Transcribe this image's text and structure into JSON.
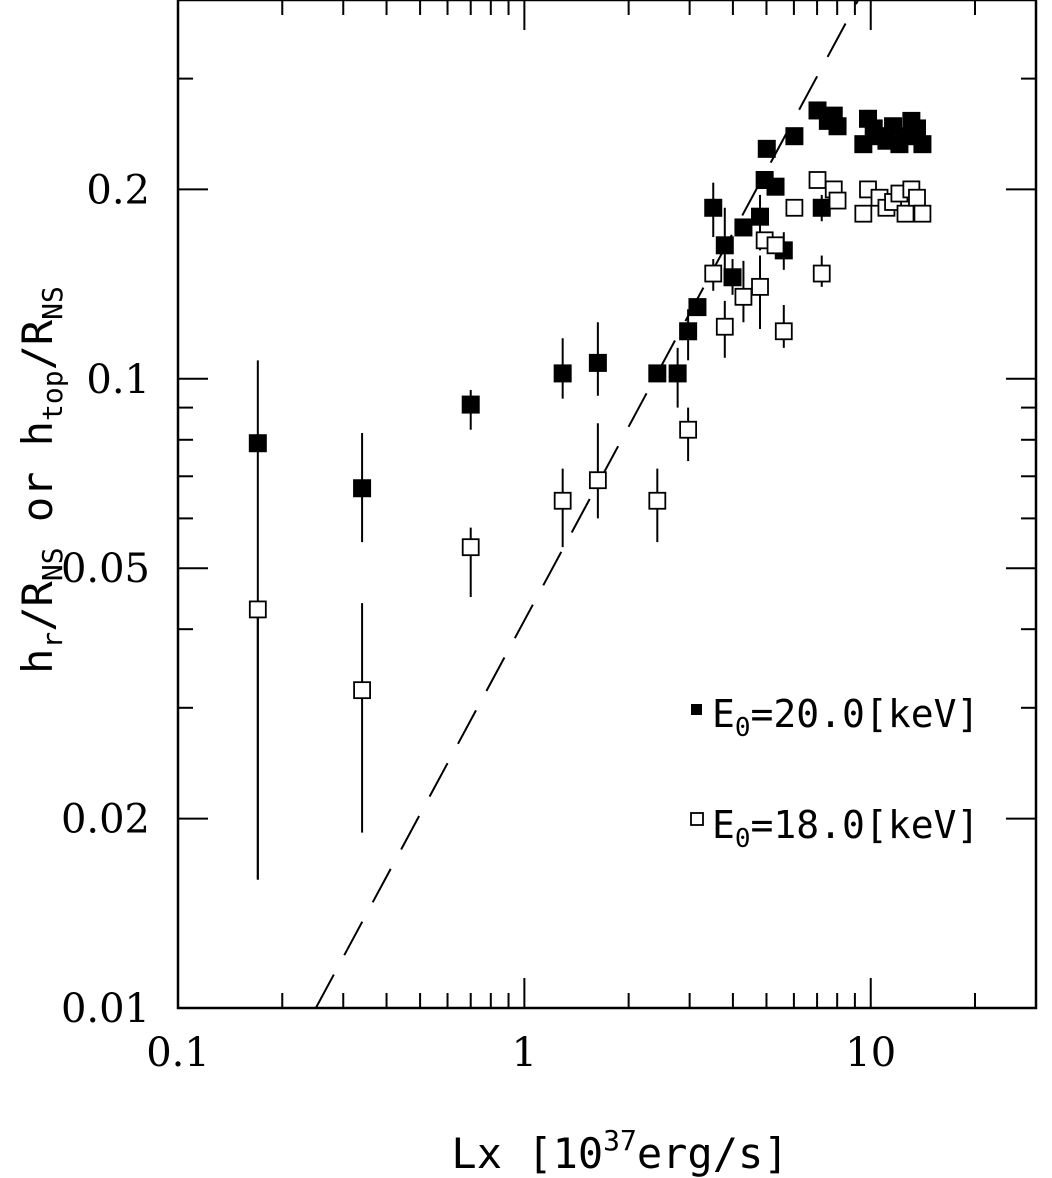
{
  "chart_data": {
    "type": "scatter",
    "xscale": "log",
    "yscale": "log",
    "xlim": [
      0.1,
      30
    ],
    "ylim": [
      0.01,
      0.4
    ],
    "x_tick_labels": [
      "0.1",
      "1",
      "10"
    ],
    "y_tick_labels": [
      "0.01",
      "0.02",
      "0.05",
      "0.1",
      "0.2"
    ],
    "xlabel": {
      "text": "Lx [10",
      "sup": "37",
      "tail": "erg/s]"
    },
    "ylabel": {
      "part1": "h",
      "part1_sub": "r",
      "part2": "/R",
      "part2_sub": "NS",
      "middle": " or ",
      "part3": "h",
      "part3_sub": "top",
      "part4": "/R",
      "part4_sub": "NS"
    },
    "legend_position": "bottom-right",
    "reference_line": {
      "style": "dashed",
      "points": [
        [
          0.25,
          0.01
        ],
        [
          9.2,
          0.4
        ]
      ]
    },
    "series": [
      {
        "name": "E₀=20.0[keV]",
        "legend": {
          "pre": "E",
          "sub": "0",
          "post": "=20.0[keV]"
        },
        "marker": "filled-square",
        "color": "#000000",
        "points": [
          {
            "x": 0.17,
            "y": 0.079,
            "lo": 0.016,
            "hi": 0.107
          },
          {
            "x": 0.34,
            "y": 0.067,
            "lo": 0.055,
            "hi": 0.082
          },
          {
            "x": 0.7,
            "y": 0.091,
            "lo": 0.083,
            "hi": 0.096
          },
          {
            "x": 1.29,
            "y": 0.102,
            "lo": 0.093,
            "hi": 0.116
          },
          {
            "x": 1.63,
            "y": 0.106,
            "lo": 0.094,
            "hi": 0.123
          },
          {
            "x": 2.42,
            "y": 0.102,
            "lo": 0.102,
            "hi": 0.102
          },
          {
            "x": 2.77,
            "y": 0.102,
            "lo": 0.09,
            "hi": 0.112
          },
          {
            "x": 2.97,
            "y": 0.119,
            "lo": 0.107,
            "hi": 0.129
          },
          {
            "x": 3.16,
            "y": 0.13,
            "lo": 0.13,
            "hi": 0.13
          },
          {
            "x": 3.51,
            "y": 0.187,
            "lo": 0.168,
            "hi": 0.205
          },
          {
            "x": 3.79,
            "y": 0.163,
            "lo": 0.145,
            "hi": 0.187
          },
          {
            "x": 3.99,
            "y": 0.145,
            "lo": 0.136,
            "hi": 0.155
          },
          {
            "x": 4.29,
            "y": 0.174,
            "lo": 0.174,
            "hi": 0.174
          },
          {
            "x": 4.79,
            "y": 0.181,
            "lo": 0.16,
            "hi": 0.196
          },
          {
            "x": 4.94,
            "y": 0.207,
            "lo": 0.207,
            "hi": 0.207
          },
          {
            "x": 5.01,
            "y": 0.232,
            "lo": 0.232,
            "hi": 0.232
          },
          {
            "x": 5.31,
            "y": 0.202,
            "lo": 0.202,
            "hi": 0.202
          },
          {
            "x": 5.61,
            "y": 0.16,
            "lo": 0.149,
            "hi": 0.171
          },
          {
            "x": 6.02,
            "y": 0.243,
            "lo": 0.243,
            "hi": 0.243
          },
          {
            "x": 7.02,
            "y": 0.267,
            "lo": 0.267,
            "hi": 0.267
          },
          {
            "x": 7.22,
            "y": 0.187,
            "lo": 0.178,
            "hi": 0.196
          },
          {
            "x": 7.52,
            "y": 0.257,
            "lo": 0.257,
            "hi": 0.257
          },
          {
            "x": 7.82,
            "y": 0.262,
            "lo": 0.262,
            "hi": 0.262
          },
          {
            "x": 8.02,
            "y": 0.252,
            "lo": 0.252,
            "hi": 0.252
          },
          {
            "x": 9.52,
            "y": 0.236,
            "lo": 0.236,
            "hi": 0.236
          },
          {
            "x": 9.82,
            "y": 0.259,
            "lo": 0.259,
            "hi": 0.259
          },
          {
            "x": 10.2,
            "y": 0.25,
            "lo": 0.25,
            "hi": 0.25
          },
          {
            "x": 10.6,
            "y": 0.243,
            "lo": 0.243,
            "hi": 0.243
          },
          {
            "x": 11.1,
            "y": 0.239,
            "lo": 0.239,
            "hi": 0.239
          },
          {
            "x": 11.6,
            "y": 0.252,
            "lo": 0.252,
            "hi": 0.252
          },
          {
            "x": 12.1,
            "y": 0.236,
            "lo": 0.236,
            "hi": 0.236
          },
          {
            "x": 12.6,
            "y": 0.243,
            "lo": 0.243,
            "hi": 0.243
          },
          {
            "x": 13.1,
            "y": 0.257,
            "lo": 0.257,
            "hi": 0.257
          },
          {
            "x": 13.6,
            "y": 0.25,
            "lo": 0.25,
            "hi": 0.25
          },
          {
            "x": 14.1,
            "y": 0.236,
            "lo": 0.236,
            "hi": 0.236
          }
        ]
      },
      {
        "name": "E₀=18.0[keV]",
        "legend": {
          "pre": "E",
          "sub": "0",
          "post": "=18.0[keV]"
        },
        "marker": "open-square",
        "color": "#000000",
        "points": [
          {
            "x": 0.17,
            "y": 0.043,
            "lo": 0.016,
            "hi": 0.043
          },
          {
            "x": 0.34,
            "y": 0.032,
            "lo": 0.019,
            "hi": 0.044
          },
          {
            "x": 0.7,
            "y": 0.054,
            "lo": 0.045,
            "hi": 0.058
          },
          {
            "x": 1.29,
            "y": 0.064,
            "lo": 0.054,
            "hi": 0.072
          },
          {
            "x": 1.63,
            "y": 0.069,
            "lo": 0.06,
            "hi": 0.085
          },
          {
            "x": 2.42,
            "y": 0.064,
            "lo": 0.055,
            "hi": 0.072
          },
          {
            "x": 2.97,
            "y": 0.083,
            "lo": 0.074,
            "hi": 0.09
          },
          {
            "x": 3.51,
            "y": 0.147,
            "lo": 0.138,
            "hi": 0.155
          },
          {
            "x": 3.79,
            "y": 0.121,
            "lo": 0.108,
            "hi": 0.133
          },
          {
            "x": 4.29,
            "y": 0.135,
            "lo": 0.123,
            "hi": 0.154
          },
          {
            "x": 4.79,
            "y": 0.14,
            "lo": 0.12,
            "hi": 0.157
          },
          {
            "x": 4.94,
            "y": 0.166,
            "lo": 0.166,
            "hi": 0.166
          },
          {
            "x": 5.31,
            "y": 0.163,
            "lo": 0.163,
            "hi": 0.163
          },
          {
            "x": 5.61,
            "y": 0.119,
            "lo": 0.112,
            "hi": 0.131
          },
          {
            "x": 6.02,
            "y": 0.187,
            "lo": 0.187,
            "hi": 0.187
          },
          {
            "x": 7.02,
            "y": 0.207,
            "lo": 0.207,
            "hi": 0.207
          },
          {
            "x": 7.22,
            "y": 0.147,
            "lo": 0.14,
            "hi": 0.157
          },
          {
            "x": 7.82,
            "y": 0.2,
            "lo": 0.2,
            "hi": 0.2
          },
          {
            "x": 8.02,
            "y": 0.192,
            "lo": 0.192,
            "hi": 0.192
          },
          {
            "x": 9.52,
            "y": 0.183,
            "lo": 0.183,
            "hi": 0.183
          },
          {
            "x": 9.82,
            "y": 0.2,
            "lo": 0.2,
            "hi": 0.2
          },
          {
            "x": 10.6,
            "y": 0.194,
            "lo": 0.194,
            "hi": 0.194
          },
          {
            "x": 11.1,
            "y": 0.187,
            "lo": 0.187,
            "hi": 0.187
          },
          {
            "x": 11.6,
            "y": 0.191,
            "lo": 0.191,
            "hi": 0.191
          },
          {
            "x": 12.1,
            "y": 0.197,
            "lo": 0.197,
            "hi": 0.197
          },
          {
            "x": 12.6,
            "y": 0.183,
            "lo": 0.183,
            "hi": 0.183
          },
          {
            "x": 13.1,
            "y": 0.2,
            "lo": 0.2,
            "hi": 0.2
          },
          {
            "x": 13.6,
            "y": 0.194,
            "lo": 0.194,
            "hi": 0.194
          },
          {
            "x": 14.1,
            "y": 0.183,
            "lo": 0.183,
            "hi": 0.183
          }
        ]
      }
    ]
  }
}
